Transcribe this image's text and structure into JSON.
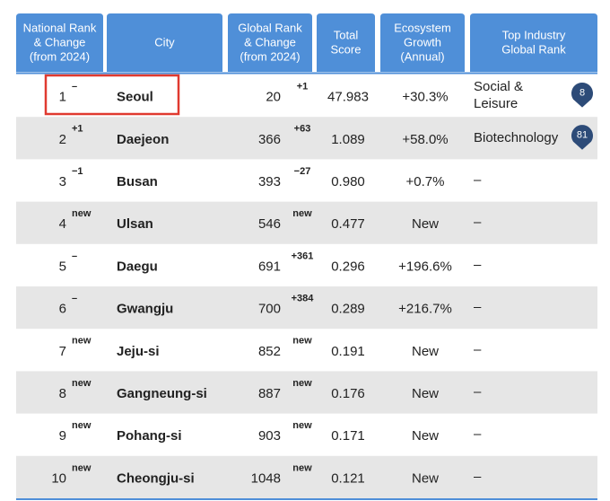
{
  "table": {
    "header": [
      [
        "National Rank",
        "& Change",
        "(from 2024)"
      ],
      [
        "City"
      ],
      [
        "Global Rank",
        "& Change",
        "(from 2024)"
      ],
      [
        "Total",
        "Score"
      ],
      [
        "Ecosystem",
        "Growth",
        "(Annual)"
      ],
      [
        "Top Industry",
        "Global Rank"
      ]
    ],
    "rows": [
      {
        "rank": "1",
        "rank_change": "–",
        "city": "Seoul",
        "global_rank": "20",
        "global_change": "+1",
        "score": "47.983",
        "growth": "+30.3%",
        "industry": [
          "Social &",
          "Leisure"
        ],
        "industry_rank": "8"
      },
      {
        "rank": "2",
        "rank_change": "+1",
        "city": "Daejeon",
        "global_rank": "366",
        "global_change": "+63",
        "score": "1.089",
        "growth": "+58.0%",
        "industry": [
          "Biotechnology"
        ],
        "industry_rank": "81"
      },
      {
        "rank": "3",
        "rank_change": "−1",
        "city": "Busan",
        "global_rank": "393",
        "global_change": "−27",
        "score": "0.980",
        "growth": "+0.7%",
        "industry": [
          "–"
        ]
      },
      {
        "rank": "4",
        "rank_change": "new",
        "city": "Ulsan",
        "global_rank": "546",
        "global_change": "new",
        "score": "0.477",
        "growth": "New",
        "industry": [
          "–"
        ]
      },
      {
        "rank": "5",
        "rank_change": "–",
        "city": "Daegu",
        "global_rank": "691",
        "global_change": "+361",
        "score": "0.296",
        "growth": "+196.6%",
        "industry": [
          "–"
        ]
      },
      {
        "rank": "6",
        "rank_change": "–",
        "city": "Gwangju",
        "global_rank": "700",
        "global_change": "+384",
        "score": "0.289",
        "growth": "+216.7%",
        "industry": [
          "–"
        ]
      },
      {
        "rank": "7",
        "rank_change": "new",
        "city": "Jeju-si",
        "global_rank": "852",
        "global_change": "new",
        "score": "0.191",
        "growth": "New",
        "industry": [
          "–"
        ]
      },
      {
        "rank": "8",
        "rank_change": "new",
        "city": "Gangneung-si",
        "global_rank": "887",
        "global_change": "new",
        "score": "0.176",
        "growth": "New",
        "industry": [
          "–"
        ]
      },
      {
        "rank": "9",
        "rank_change": "new",
        "city": "Pohang-si",
        "global_rank": "903",
        "global_change": "new",
        "score": "0.171",
        "growth": "New",
        "industry": [
          "–"
        ]
      },
      {
        "rank": "10",
        "rank_change": "new",
        "city": "Cheongju-si",
        "global_rank": "1048",
        "global_change": "new",
        "score": "0.121",
        "growth": "New",
        "industry": [
          "–"
        ]
      }
    ]
  }
}
